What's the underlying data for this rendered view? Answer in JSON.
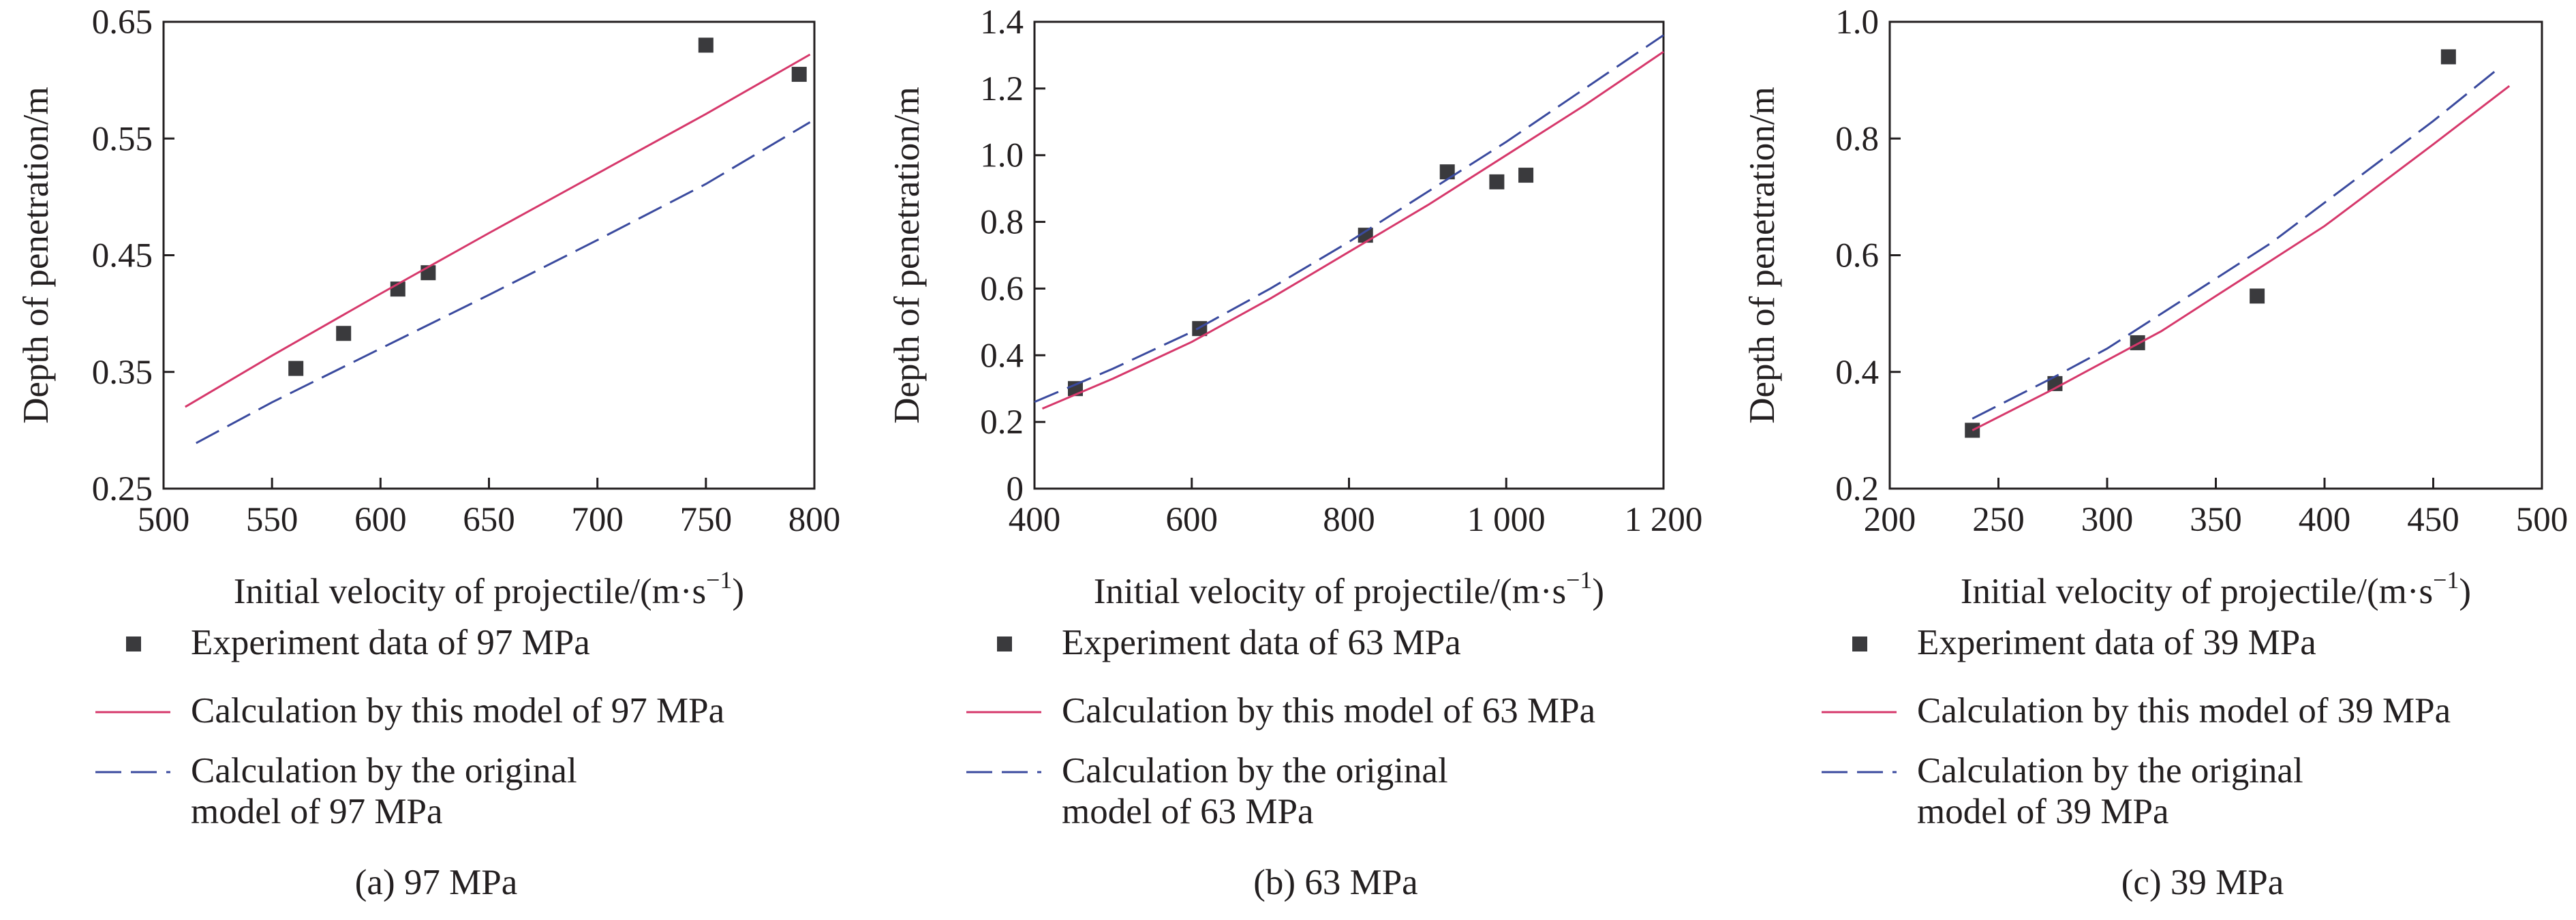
{
  "colors": {
    "experiment_marker": "#3a3a3d",
    "this_model": "#d6386b",
    "original_model": "#3a4a9e",
    "axis": "#231f20"
  },
  "chart_data": [
    {
      "type": "scatter",
      "caption": "(a) 97 MPa",
      "xlabel": "Initial velocity of projectile/(m·s",
      "xlabel_sup": "−1",
      "xlabel_close": ")",
      "ylabel": "Depth of penetration/m",
      "xlim": [
        500,
        800
      ],
      "ylim": [
        0.25,
        0.65
      ],
      "xticks": [
        500,
        550,
        600,
        650,
        700,
        750,
        800
      ],
      "xtick_labels": [
        "500",
        "550",
        "600",
        "650",
        "700",
        "750",
        "800"
      ],
      "yticks": [
        0.25,
        0.35,
        0.45,
        0.55,
        0.65
      ],
      "ytick_labels": [
        "0.25",
        "0.35",
        "0.45",
        "0.55",
        "0.65"
      ],
      "grid": false,
      "legend_position": "below",
      "series": [
        {
          "name": "Experiment data of 97 MPa",
          "kind": "marker",
          "x": [
            561,
            583,
            608,
            622,
            750,
            793
          ],
          "y": [
            0.353,
            0.383,
            0.421,
            0.435,
            0.63,
            0.605
          ]
        },
        {
          "name": "Calculation by this model of 97 MPa",
          "kind": "solid",
          "x": [
            510,
            550,
            600,
            650,
            700,
            750,
            798
          ],
          "y": [
            0.32,
            0.364,
            0.417,
            0.469,
            0.52,
            0.571,
            0.622
          ]
        },
        {
          "name": "Calculation by the original",
          "name_line2": "model of 97 MPa",
          "kind": "dashed",
          "x": [
            515,
            550,
            600,
            650,
            700,
            750,
            798
          ],
          "y": [
            0.289,
            0.324,
            0.37,
            0.416,
            0.463,
            0.511,
            0.564
          ]
        }
      ]
    },
    {
      "type": "scatter",
      "caption": "(b) 63 MPa",
      "xlabel": "Initial velocity of projectile/(m·s",
      "xlabel_sup": "−1",
      "xlabel_close": ")",
      "ylabel": "Depth of penetration/m",
      "xlim": [
        400,
        1200
      ],
      "ylim": [
        0,
        1.4
      ],
      "xticks": [
        400,
        600,
        800,
        1000,
        1200
      ],
      "xtick_labels": [
        "400",
        "600",
        "800",
        "1 000",
        "1 200"
      ],
      "yticks": [
        0,
        0.2,
        0.4,
        0.6,
        0.8,
        1.0,
        1.2,
        1.4
      ],
      "ytick_labels": [
        "0",
        "0.2",
        "0.4",
        "0.6",
        "0.8",
        "1.0",
        "1.2",
        "1.4"
      ],
      "grid": false,
      "legend_position": "below",
      "series": [
        {
          "name": "Experiment data of 63 MPa",
          "kind": "marker",
          "x": [
            452,
            610,
            821,
            925,
            988,
            1025
          ],
          "y": [
            0.3,
            0.48,
            0.76,
            0.95,
            0.92,
            0.94
          ]
        },
        {
          "name": "Calculation by this model of 63 MPa",
          "kind": "solid",
          "x": [
            410,
            500,
            600,
            700,
            800,
            900,
            1000,
            1100,
            1200
          ],
          "y": [
            0.24,
            0.33,
            0.44,
            0.57,
            0.71,
            0.85,
            1.0,
            1.15,
            1.31
          ]
        },
        {
          "name": "Calculation by the original",
          "name_line2": "model of 63 MPa",
          "kind": "dashed",
          "x": [
            400,
            500,
            600,
            700,
            800,
            900,
            1000,
            1100,
            1200
          ],
          "y": [
            0.26,
            0.36,
            0.47,
            0.6,
            0.74,
            0.89,
            1.04,
            1.2,
            1.36
          ]
        }
      ]
    },
    {
      "type": "scatter",
      "caption": "(c) 39 MPa",
      "xlabel": "Initial velocity of projectile/(m·s",
      "xlabel_sup": "−1",
      "xlabel_close": ")",
      "ylabel": "Depth of penetration/m",
      "xlim": [
        200,
        500
      ],
      "ylim": [
        0.2,
        1.0
      ],
      "xticks": [
        200,
        250,
        300,
        350,
        400,
        450,
        500
      ],
      "xtick_labels": [
        "200",
        "250",
        "300",
        "350",
        "400",
        "450",
        "500"
      ],
      "yticks": [
        0.2,
        0.4,
        0.6,
        0.8,
        1.0
      ],
      "ytick_labels": [
        "0.2",
        "0.4",
        "0.6",
        "0.8",
        "1.0"
      ],
      "grid": false,
      "legend_position": "below",
      "series": [
        {
          "name": "Experiment data of 39 MPa",
          "kind": "marker",
          "x": [
            238,
            276,
            314,
            369,
            457
          ],
          "y": [
            0.3,
            0.38,
            0.45,
            0.53,
            0.94
          ]
        },
        {
          "name": "Calculation by this model of 39 MPa",
          "kind": "solid",
          "x": [
            238,
            275,
            300,
            325,
            350,
            375,
            400,
            425,
            450,
            485
          ],
          "y": [
            0.3,
            0.37,
            0.42,
            0.47,
            0.53,
            0.59,
            0.65,
            0.72,
            0.79,
            0.89
          ]
        },
        {
          "name": "Calculation by the original",
          "name_line2": "model of 39 MPa",
          "kind": "dashed",
          "x": [
            238,
            275,
            300,
            325,
            350,
            375,
            400,
            425,
            450,
            480
          ],
          "y": [
            0.32,
            0.39,
            0.44,
            0.5,
            0.56,
            0.62,
            0.69,
            0.76,
            0.83,
            0.92
          ]
        }
      ]
    }
  ]
}
